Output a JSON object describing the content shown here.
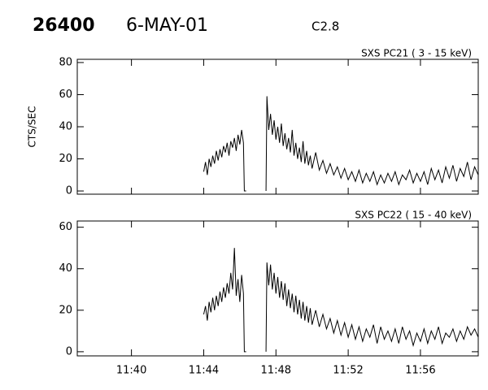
{
  "header": {
    "id": "26400",
    "date": "6-MAY-01",
    "flare_class": "C2.8"
  },
  "chart_data": [
    {
      "type": "line",
      "title": "SXS PC21  (  3 - 15 keV)",
      "y_label": "CTS/SEC",
      "color": "#000000",
      "x": [
        44.0,
        44.1,
        44.2,
        44.3,
        44.4,
        44.5,
        44.6,
        44.7,
        44.8,
        44.9,
        45.0,
        45.1,
        45.2,
        45.3,
        45.4,
        45.5,
        45.6,
        45.7,
        45.8,
        45.9,
        46.0,
        46.1,
        46.2,
        46.25,
        46.35,
        46.8,
        47.45,
        47.5,
        47.6,
        47.7,
        47.8,
        47.9,
        48.0,
        48.1,
        48.2,
        48.3,
        48.4,
        48.5,
        48.6,
        48.7,
        48.8,
        48.9,
        49.0,
        49.1,
        49.2,
        49.3,
        49.4,
        49.5,
        49.6,
        49.7,
        49.8,
        49.9,
        50.0,
        50.2,
        50.4,
        50.6,
        50.8,
        51.0,
        51.2,
        51.4,
        51.6,
        51.8,
        52.0,
        52.2,
        52.4,
        52.6,
        52.8,
        53.0,
        53.2,
        53.4,
        53.6,
        53.8,
        54.0,
        54.2,
        54.4,
        54.6,
        54.8,
        55.0,
        55.2,
        55.4,
        55.6,
        55.8,
        56.0,
        56.2,
        56.4,
        56.6,
        56.8,
        57.0,
        57.2,
        57.4,
        57.6,
        57.8,
        58.0,
        58.2,
        58.4,
        58.6,
        58.8,
        59.0,
        59.2
      ],
      "values": [
        12,
        18,
        10,
        20,
        15,
        22,
        17,
        25,
        19,
        26,
        21,
        28,
        24,
        30,
        22,
        31,
        27,
        33,
        25,
        35,
        29,
        38,
        30,
        0,
        0,
        null,
        0,
        59,
        38,
        48,
        35,
        44,
        32,
        40,
        30,
        42,
        28,
        36,
        26,
        33,
        24,
        38,
        22,
        30,
        20,
        27,
        18,
        31,
        17,
        25,
        16,
        22,
        14,
        24,
        13,
        19,
        11,
        17,
        10,
        15,
        8,
        14,
        7,
        12,
        6,
        13,
        5,
        11,
        6,
        12,
        4,
        10,
        5,
        11,
        6,
        12,
        4,
        10,
        7,
        13,
        5,
        11,
        6,
        12,
        4,
        14,
        7,
        13,
        5,
        15,
        8,
        16,
        6,
        14,
        9,
        18,
        7,
        15,
        10
      ],
      "xlim": [
        37,
        59.2
      ],
      "xticks": [
        40,
        44,
        48,
        52,
        56
      ],
      "ylim": [
        -2,
        82
      ],
      "yticks": [
        0,
        20,
        40,
        60,
        80
      ]
    },
    {
      "type": "line",
      "title": "SXS PC22  ( 15 - 40 keV)",
      "color": "#000000",
      "x": [
        44.0,
        44.1,
        44.2,
        44.3,
        44.4,
        44.5,
        44.6,
        44.7,
        44.8,
        44.9,
        45.0,
        45.1,
        45.2,
        45.3,
        45.4,
        45.5,
        45.6,
        45.7,
        45.8,
        45.9,
        46.0,
        46.1,
        46.2,
        46.25,
        46.35,
        46.8,
        47.45,
        47.5,
        47.6,
        47.7,
        47.8,
        47.9,
        48.0,
        48.1,
        48.2,
        48.3,
        48.4,
        48.5,
        48.6,
        48.7,
        48.8,
        48.9,
        49.0,
        49.1,
        49.2,
        49.3,
        49.4,
        49.5,
        49.6,
        49.7,
        49.8,
        49.9,
        50.0,
        50.2,
        50.4,
        50.6,
        50.8,
        51.0,
        51.2,
        51.4,
        51.6,
        51.8,
        52.0,
        52.2,
        52.4,
        52.6,
        52.8,
        53.0,
        53.2,
        53.4,
        53.6,
        53.8,
        54.0,
        54.2,
        54.4,
        54.6,
        54.8,
        55.0,
        55.2,
        55.4,
        55.6,
        55.8,
        56.0,
        56.2,
        56.4,
        56.6,
        56.8,
        57.0,
        57.2,
        57.4,
        57.6,
        57.8,
        58.0,
        58.2,
        58.4,
        58.6,
        58.8,
        59.0,
        59.2
      ],
      "values": [
        18,
        22,
        15,
        24,
        19,
        26,
        20,
        27,
        22,
        29,
        24,
        31,
        26,
        33,
        28,
        38,
        30,
        50,
        27,
        35,
        24,
        37,
        28,
        0,
        0,
        null,
        0,
        43,
        32,
        42,
        30,
        38,
        28,
        36,
        26,
        34,
        25,
        33,
        22,
        30,
        21,
        28,
        19,
        27,
        18,
        25,
        16,
        24,
        15,
        22,
        14,
        21,
        13,
        20,
        12,
        18,
        11,
        16,
        9,
        15,
        8,
        14,
        7,
        13,
        6,
        12,
        5,
        11,
        7,
        13,
        4,
        12,
        6,
        10,
        5,
        11,
        4,
        12,
        6,
        10,
        3,
        9,
        5,
        11,
        4,
        10,
        6,
        12,
        4,
        9,
        7,
        11,
        5,
        10,
        6,
        12,
        8,
        11,
        7
      ],
      "xlim": [
        37,
        59.2
      ],
      "xticks": [
        {
          "value": 40,
          "label": "11:40"
        },
        {
          "value": 44,
          "label": "11:44"
        },
        {
          "value": 48,
          "label": "11:48"
        },
        {
          "value": 52,
          "label": "11:52"
        },
        {
          "value": 56,
          "label": "11:56"
        }
      ],
      "ylim": [
        -2,
        63
      ],
      "yticks": [
        0,
        20,
        40,
        60
      ]
    }
  ]
}
